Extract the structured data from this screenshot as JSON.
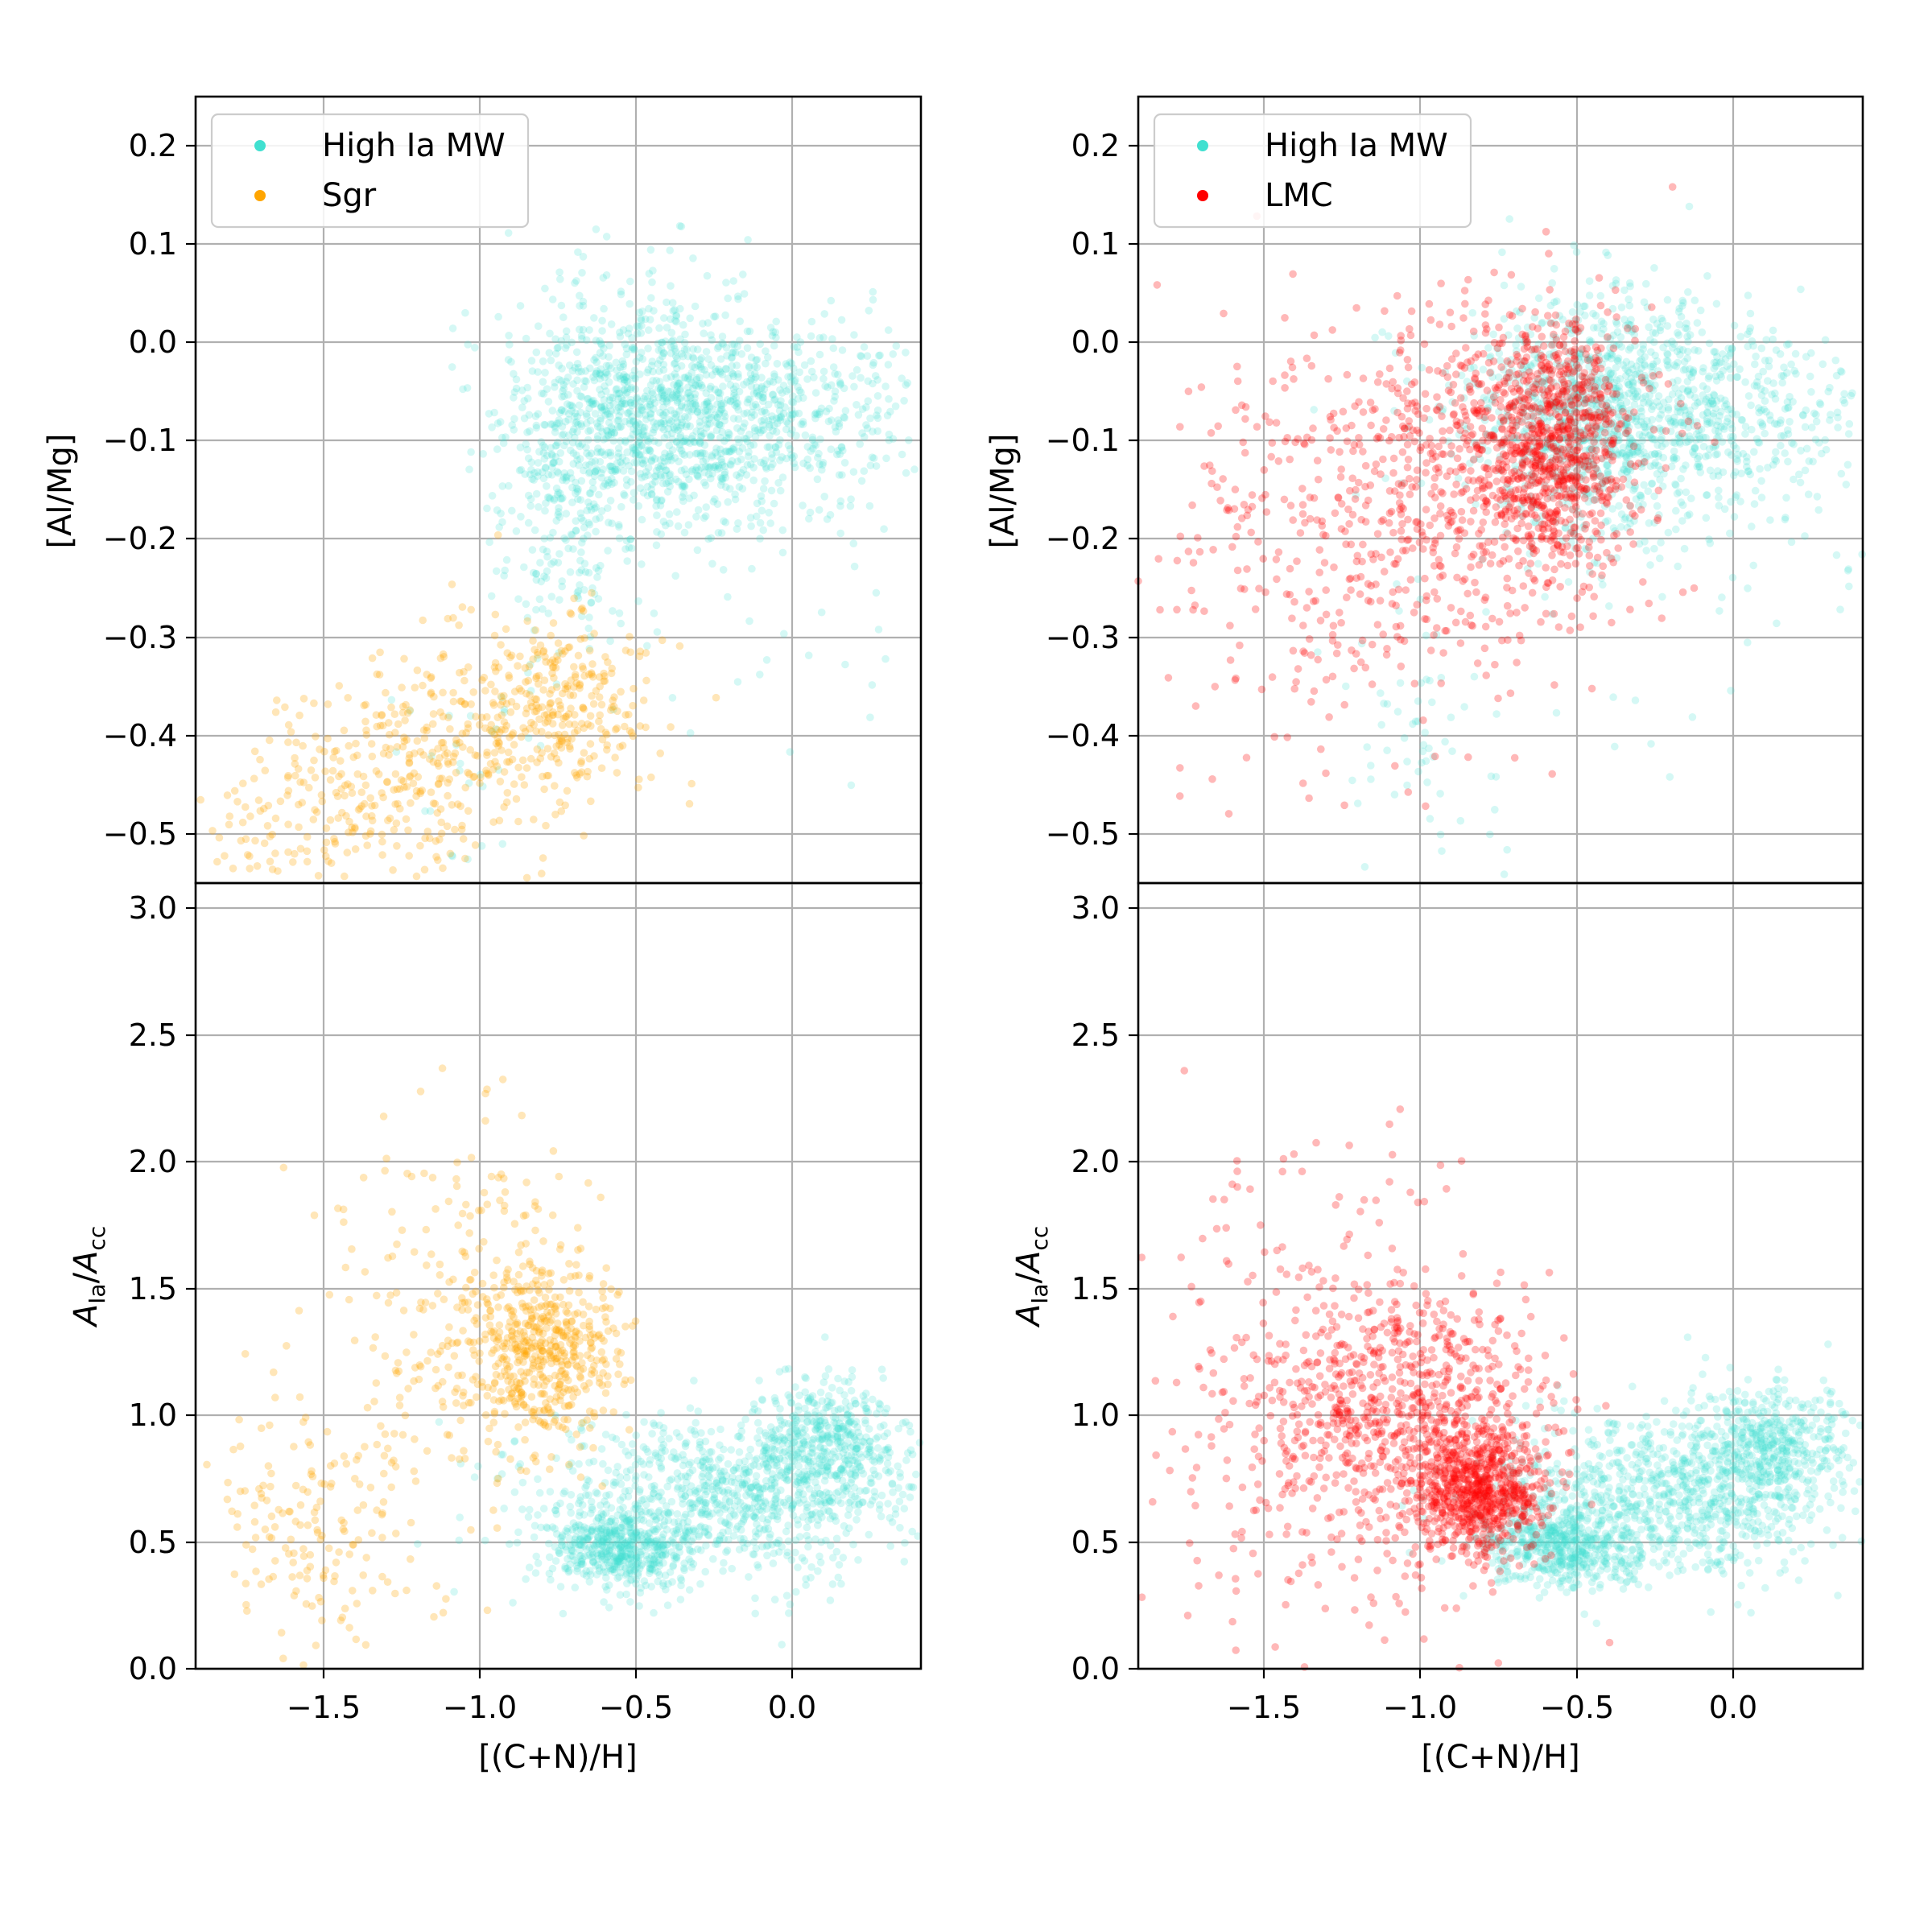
{
  "colors": {
    "mw": "#40e0d0",
    "sgr": "#ffa500",
    "lmc": "#ff0000"
  },
  "legend": {
    "mw_label": "High Ia MW",
    "sgr_label": "Sgr",
    "lmc_label": "LMC"
  },
  "chart_data": [
    {
      "panel": "top-left",
      "type": "scatter",
      "xlabel": "",
      "ylabel": "[Al/Mg]",
      "xlim": [
        -1.9,
        0.4
      ],
      "ylim": [
        -0.55,
        0.25
      ],
      "xticks": [
        -1.5,
        -1.0,
        -0.5,
        0.0
      ],
      "yticks": [
        0.2,
        0.1,
        0.0,
        -0.1,
        -0.2,
        -0.3,
        -0.4,
        -0.5
      ],
      "ytick_labels": [
        "0.2",
        "0.1",
        "0.0",
        "−0.1",
        "−0.2",
        "−0.3",
        "−0.4",
        "−0.5"
      ],
      "grid": true,
      "legend_position": "upper-left",
      "series": [
        {
          "name": "High Ia MW",
          "color_key": "mw",
          "clusters": [
            {
              "cx": -0.25,
              "cy": -0.07,
              "sx": 0.32,
              "sy": 0.05,
              "n": 900
            },
            {
              "cx": -0.45,
              "cy": -0.08,
              "sx": 0.18,
              "sy": 0.07,
              "n": 500
            },
            {
              "cx": -0.72,
              "cy": -0.15,
              "sx": 0.12,
              "sy": 0.08,
              "n": 300
            },
            {
              "cx": -1.0,
              "cy": -0.42,
              "sx": 0.15,
              "sy": 0.06,
              "n": 30
            },
            {
              "cx": -0.1,
              "cy": -0.25,
              "sx": 0.35,
              "sy": 0.12,
              "n": 40
            }
          ]
        },
        {
          "name": "Sgr",
          "color_key": "sgr",
          "clusters": [
            {
              "cx": -0.75,
              "cy": -0.37,
              "sx": 0.16,
              "sy": 0.05,
              "n": 330
            },
            {
              "cx": -1.15,
              "cy": -0.44,
              "sx": 0.18,
              "sy": 0.05,
              "n": 250
            },
            {
              "cx": -1.55,
              "cy": -0.48,
              "sx": 0.18,
              "sy": 0.06,
              "n": 150
            }
          ]
        }
      ]
    },
    {
      "panel": "top-right",
      "type": "scatter",
      "xlabel": "",
      "ylabel": "[Al/Mg]",
      "xlim": [
        -1.9,
        0.4
      ],
      "ylim": [
        -0.55,
        0.25
      ],
      "xticks": [
        -1.5,
        -1.0,
        -0.5,
        0.0
      ],
      "yticks": [
        0.2,
        0.1,
        0.0,
        -0.1,
        -0.2,
        -0.3,
        -0.4,
        -0.5
      ],
      "ytick_labels": [
        "0.2",
        "0.1",
        "0.0",
        "−0.1",
        "−0.2",
        "−0.3",
        "−0.4",
        "−0.5"
      ],
      "grid": true,
      "legend_position": "upper-left",
      "series": [
        {
          "name": "High Ia MW",
          "color_key": "mw",
          "clusters": [
            {
              "cx": -0.25,
              "cy": -0.07,
              "sx": 0.32,
              "sy": 0.05,
              "n": 900
            },
            {
              "cx": -0.45,
              "cy": -0.08,
              "sx": 0.18,
              "sy": 0.07,
              "n": 500
            },
            {
              "cx": -1.05,
              "cy": -0.4,
              "sx": 0.15,
              "sy": 0.07,
              "n": 60
            },
            {
              "cx": -0.1,
              "cy": -0.25,
              "sx": 0.35,
              "sy": 0.12,
              "n": 40
            }
          ]
        },
        {
          "name": "LMC",
          "color_key": "lmc",
          "clusters": [
            {
              "cx": -0.58,
              "cy": -0.1,
              "sx": 0.12,
              "sy": 0.06,
              "n": 800
            },
            {
              "cx": -0.85,
              "cy": -0.14,
              "sx": 0.25,
              "sy": 0.09,
              "n": 600
            },
            {
              "cx": -1.3,
              "cy": -0.22,
              "sx": 0.3,
              "sy": 0.12,
              "n": 250
            }
          ]
        }
      ]
    },
    {
      "panel": "bottom-left",
      "type": "scatter",
      "xlabel": "[(C+N)/H]",
      "ylabel_main": "A",
      "ylabel_sub1": "Ia",
      "ylabel_sep": "/",
      "ylabel_main2": "A",
      "ylabel_sub2": "cc",
      "xlim": [
        -1.9,
        0.4
      ],
      "ylim": [
        0.0,
        3.1
      ],
      "xticks": [
        -1.5,
        -1.0,
        -0.5,
        0.0
      ],
      "xtick_labels": [
        "−1.5",
        "−1.0",
        "−0.5",
        "0.0"
      ],
      "yticks": [
        3.0,
        2.5,
        2.0,
        1.5,
        1.0,
        0.5,
        0.0
      ],
      "ytick_labels": [
        "3.0",
        "2.5",
        "2.0",
        "1.5",
        "1.0",
        "0.5",
        "0.0"
      ],
      "grid": true,
      "series": [
        {
          "name": "High Ia MW",
          "color_key": "mw",
          "clusters": [
            {
              "cx": -0.2,
              "cy": 0.68,
              "sx": 0.3,
              "sy": 0.16,
              "n": 900
            },
            {
              "cx": -0.55,
              "cy": 0.48,
              "sx": 0.12,
              "sy": 0.08,
              "n": 500
            },
            {
              "cx": 0.1,
              "cy": 0.9,
              "sx": 0.12,
              "sy": 0.12,
              "n": 400
            }
          ]
        },
        {
          "name": "Sgr",
          "color_key": "sgr",
          "clusters": [
            {
              "cx": -0.8,
              "cy": 1.25,
              "sx": 0.13,
              "sy": 0.18,
              "n": 500
            },
            {
              "cx": -1.05,
              "cy": 1.5,
              "sx": 0.2,
              "sy": 0.35,
              "n": 200
            },
            {
              "cx": -1.5,
              "cy": 0.6,
              "sx": 0.18,
              "sy": 0.25,
              "n": 180
            }
          ]
        }
      ]
    },
    {
      "panel": "bottom-right",
      "type": "scatter",
      "xlabel": "[(C+N)/H]",
      "ylabel_main": "A",
      "ylabel_sub1": "Ia",
      "ylabel_sep": "/",
      "ylabel_main2": "A",
      "ylabel_sub2": "cc",
      "xlim": [
        -1.9,
        0.4
      ],
      "ylim": [
        0.0,
        3.1
      ],
      "xticks": [
        -1.5,
        -1.0,
        -0.5,
        0.0
      ],
      "xtick_labels": [
        "−1.5",
        "−1.0",
        "−0.5",
        "0.0"
      ],
      "yticks": [
        3.0,
        2.5,
        2.0,
        1.5,
        1.0,
        0.5,
        0.0
      ],
      "ytick_labels": [
        "3.0",
        "2.5",
        "2.0",
        "1.5",
        "1.0",
        "0.5",
        "0.0"
      ],
      "grid": true,
      "series": [
        {
          "name": "High Ia MW",
          "color_key": "mw",
          "clusters": [
            {
              "cx": -0.2,
              "cy": 0.68,
              "sx": 0.3,
              "sy": 0.16,
              "n": 900
            },
            {
              "cx": -0.55,
              "cy": 0.48,
              "sx": 0.12,
              "sy": 0.08,
              "n": 500
            },
            {
              "cx": 0.1,
              "cy": 0.9,
              "sx": 0.12,
              "sy": 0.12,
              "n": 400
            }
          ]
        },
        {
          "name": "LMC",
          "color_key": "lmc",
          "clusters": [
            {
              "cx": -0.82,
              "cy": 0.7,
              "sx": 0.1,
              "sy": 0.12,
              "n": 700
            },
            {
              "cx": -1.05,
              "cy": 1.0,
              "sx": 0.22,
              "sy": 0.25,
              "n": 700
            },
            {
              "cx": -1.35,
              "cy": 1.1,
              "sx": 0.3,
              "sy": 0.5,
              "n": 300
            }
          ]
        }
      ]
    }
  ]
}
